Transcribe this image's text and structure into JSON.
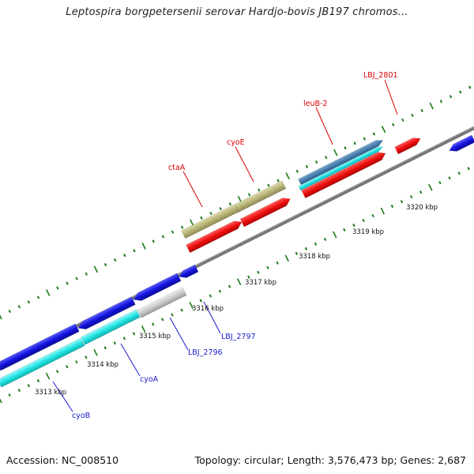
{
  "title": "Leptospira borgpetersenii serovar Hardjo-bovis JB197 chromos...",
  "footer": {
    "accession": "Accession: NC_008510",
    "summary": "Topology: circular; Length: 3,576,473 bp; Genes: 2,687"
  },
  "ticks": [
    "3313 kbp",
    "3314 kbp",
    "3315 kbp",
    "3316 kbp",
    "3317 kbp",
    "3318 kbp",
    "3319 kbp",
    "3320 kbp"
  ],
  "gene_labels": {
    "red": [
      "LBJ_2801",
      "leuB-2",
      "cyoE",
      "ctaA"
    ],
    "blue": [
      "LBJ_2797",
      "LBJ_2796",
      "cyoA",
      "cyoB"
    ]
  },
  "colors": {
    "red": "#ee1111",
    "blue": "#1414dd",
    "cyan": "#22e5e5",
    "olive": "#b8b478",
    "steel": "#4a7fb0",
    "gray": "#c8c8c8",
    "tick": "#1a7a1a"
  }
}
